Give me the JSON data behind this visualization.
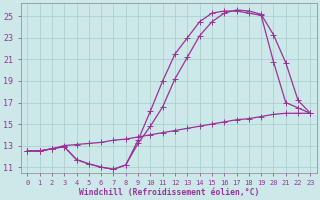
{
  "bg_color": "#cce8e8",
  "line_color": "#993399",
  "grid_color": "#aacccc",
  "xlabel": "Windchill (Refroidissement éolien,°C)",
  "yticks": [
    11,
    13,
    15,
    17,
    19,
    21,
    23,
    25
  ],
  "xticks": [
    0,
    1,
    2,
    3,
    4,
    5,
    6,
    7,
    8,
    9,
    10,
    11,
    12,
    13,
    14,
    15,
    16,
    17,
    18,
    19,
    20,
    21,
    22,
    23
  ],
  "ylim": [
    10.5,
    26.2
  ],
  "xlim": [
    -0.5,
    23.5
  ],
  "font_color": "#993399",
  "curve1_x": [
    0,
    1,
    2,
    3,
    4,
    5,
    6,
    7,
    8,
    9,
    10,
    11,
    12,
    13,
    14,
    15,
    16,
    17,
    18,
    19,
    20,
    21,
    22,
    23
  ],
  "curve1_y": [
    12.5,
    12.5,
    12.7,
    12.9,
    11.7,
    11.3,
    11.0,
    10.8,
    11.2,
    13.5,
    16.2,
    19.0,
    21.5,
    23.0,
    24.5,
    25.3,
    25.5,
    25.5,
    25.3,
    25.1,
    20.8,
    17.0,
    16.5,
    16.0
  ],
  "curve2_x": [
    0,
    1,
    2,
    3,
    4,
    5,
    6,
    7,
    8,
    9,
    10,
    11,
    12,
    13,
    14,
    15,
    16,
    17,
    18,
    19,
    20,
    21,
    22,
    23
  ],
  "curve2_y": [
    12.5,
    12.5,
    12.7,
    12.9,
    11.7,
    11.3,
    11.0,
    10.8,
    11.2,
    13.2,
    14.8,
    16.6,
    19.2,
    21.2,
    23.2,
    24.5,
    25.3,
    25.6,
    25.5,
    25.2,
    23.3,
    20.7,
    17.2,
    16.0
  ],
  "curve3_x": [
    0,
    1,
    2,
    3,
    4,
    5,
    6,
    7,
    8,
    9,
    10,
    11,
    12,
    13,
    14,
    15,
    16,
    17,
    18,
    19,
    20,
    21,
    22,
    23
  ],
  "curve3_y": [
    12.5,
    12.5,
    12.7,
    13.0,
    13.1,
    13.2,
    13.3,
    13.5,
    13.6,
    13.8,
    14.0,
    14.2,
    14.4,
    14.6,
    14.8,
    15.0,
    15.2,
    15.4,
    15.5,
    15.7,
    15.9,
    16.0,
    16.0,
    16.0
  ]
}
